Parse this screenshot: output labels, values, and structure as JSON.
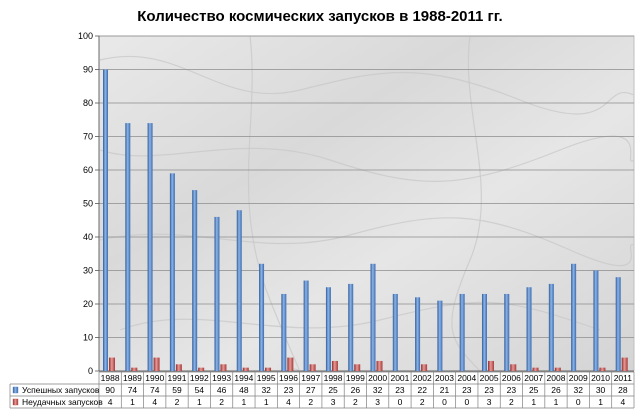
{
  "chart_data": {
    "type": "bar",
    "title": "Количество космических запусков в 1988-2011 гг.",
    "categories": [
      "1988",
      "1989",
      "1990",
      "1991",
      "1992",
      "1993",
      "1994",
      "1995",
      "1996",
      "1997",
      "1998",
      "1999",
      "2000",
      "2001",
      "2002",
      "2003",
      "2004",
      "2005",
      "2006",
      "2007",
      "2008",
      "2009",
      "2010",
      "2011"
    ],
    "series": [
      {
        "name": "Успешных запусков",
        "color": "#4f81bd",
        "values": [
          90,
          74,
          74,
          59,
          54,
          46,
          48,
          32,
          23,
          27,
          25,
          26,
          32,
          23,
          22,
          21,
          23,
          23,
          23,
          25,
          26,
          32,
          30,
          28
        ]
      },
      {
        "name": "Неудачных запусков",
        "color": "#c0504d",
        "values": [
          4,
          1,
          4,
          2,
          1,
          2,
          1,
          1,
          4,
          2,
          3,
          2,
          3,
          0,
          2,
          0,
          0,
          3,
          2,
          1,
          1,
          0,
          1,
          4
        ]
      }
    ],
    "ylim": [
      0,
      100
    ],
    "yticks": [
      0,
      10,
      20,
      30,
      40,
      50,
      60,
      70,
      80,
      90,
      100
    ],
    "grid": true,
    "legend": "data-table"
  }
}
